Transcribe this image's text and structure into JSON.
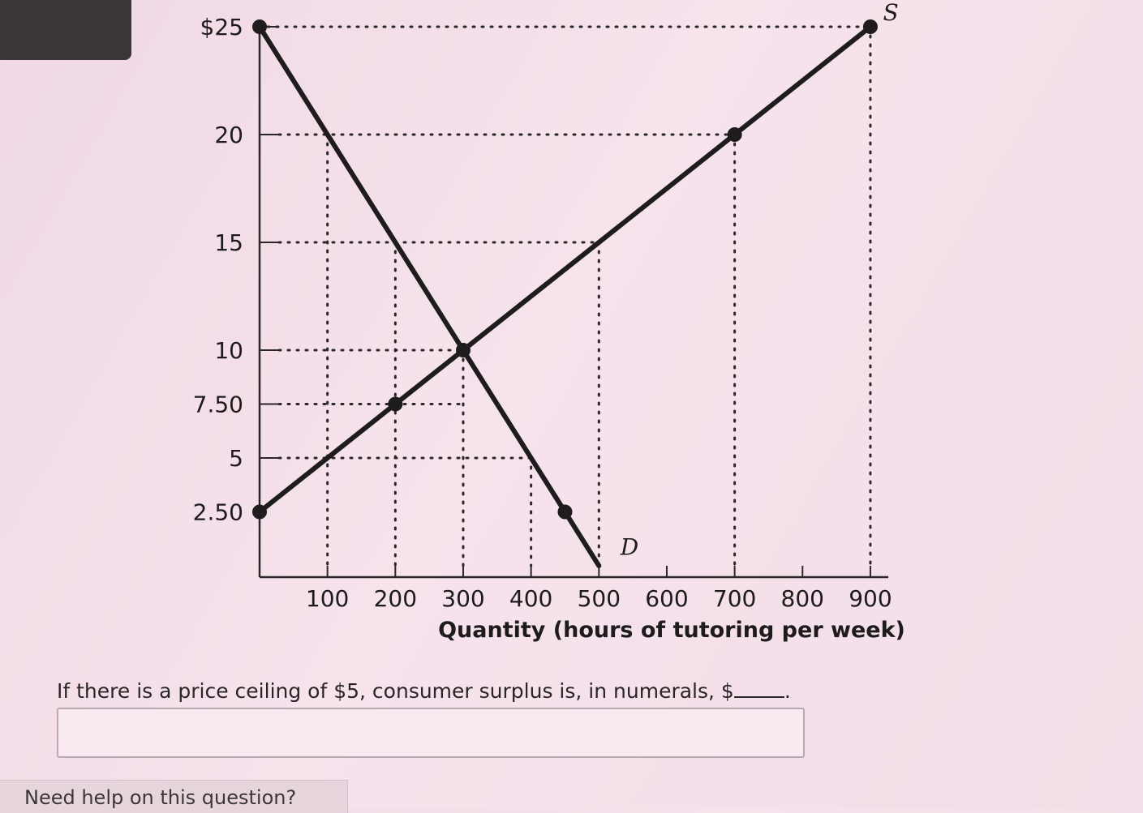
{
  "chart_data": {
    "type": "line",
    "xlabel": "Quantity (hours of tutoring per week)",
    "ylabel": "",
    "x_ticks": [
      100,
      200,
      300,
      400,
      500,
      600,
      700,
      800,
      900
    ],
    "x_tick_labels": [
      "100",
      "200",
      "300",
      "400",
      "500",
      "600",
      "700",
      "800",
      "900"
    ],
    "y_ticks": [
      2.5,
      5,
      7.5,
      10,
      15,
      20,
      25
    ],
    "y_tick_labels": [
      "2.50",
      "5",
      "7.50",
      "10",
      "15",
      "20",
      "$25"
    ],
    "xlim": [
      0,
      930
    ],
    "ylim": [
      0,
      25
    ],
    "series": [
      {
        "name": "D",
        "x": [
          0,
          100,
          200,
          300,
          400,
          450,
          500
        ],
        "y": [
          25,
          20,
          15,
          10,
          5,
          2.5,
          0
        ],
        "markers": [
          [
            0,
            25
          ],
          [
            450,
            2.5
          ]
        ]
      },
      {
        "name": "S",
        "x": [
          0,
          200,
          300,
          700,
          900
        ],
        "y": [
          2.5,
          7.5,
          10,
          20,
          25
        ],
        "markers": [
          [
            0,
            2.5
          ],
          [
            200,
            7.5
          ],
          [
            300,
            10
          ],
          [
            700,
            20
          ],
          [
            900,
            25
          ]
        ]
      }
    ]
  },
  "question": {
    "text": "If there is a price ceiling of $5, consumer surplus is, in numerals, $",
    "suffix": "."
  },
  "answer": {
    "value": ""
  },
  "help": {
    "label": "Need help on this question?"
  }
}
